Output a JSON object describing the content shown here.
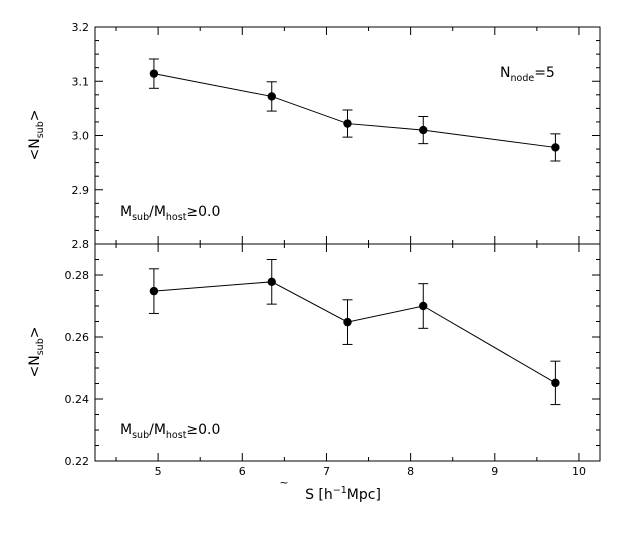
{
  "chart_data": [
    {
      "type": "line",
      "panel": "top",
      "ylabel": "<N",
      "ylabel_sub": "sub",
      "ylabel_close": ">",
      "ylim": [
        2.8,
        3.2
      ],
      "yticks": [
        2.8,
        2.9,
        3.0,
        3.1,
        3.2
      ],
      "ytick_labels": [
        "2.8",
        "2.9",
        "3.0",
        "3.1",
        "3.2"
      ],
      "x": [
        4.95,
        6.35,
        7.25,
        8.15,
        9.72
      ],
      "values": [
        3.114,
        3.072,
        3.022,
        3.01,
        2.978
      ],
      "errors": [
        0.027,
        0.027,
        0.025,
        0.025,
        0.025
      ],
      "annotation_mass": {
        "m1": "M",
        "s1": "sub",
        "slash": "/M",
        "s2": "host",
        "rest": "≥0.0"
      },
      "annotation_node": {
        "main": "N",
        "sub": "node",
        "rest": "=5"
      }
    },
    {
      "type": "line",
      "panel": "bottom",
      "ylabel": "<N",
      "ylabel_sub": "sub",
      "ylabel_close": ">",
      "ylim": [
        0.22,
        0.29
      ],
      "yticks": [
        0.22,
        0.24,
        0.26,
        0.28
      ],
      "ytick_labels": [
        "0.22",
        "0.24",
        "0.26",
        "0.28"
      ],
      "x": [
        4.95,
        6.35,
        7.25,
        8.15,
        9.72
      ],
      "values": [
        0.2748,
        0.2778,
        0.2648,
        0.27,
        0.2452
      ],
      "errors": [
        0.0072,
        0.0072,
        0.0072,
        0.0072,
        0.007
      ],
      "annotation_mass": {
        "m1": "M",
        "s1": "sub",
        "slash": "/M",
        "s2": "host",
        "rest": "≥0.0"
      }
    }
  ],
  "xaxis": {
    "xlim": [
      4.25,
      10.25
    ],
    "xticks": [
      5,
      6,
      7,
      8,
      9,
      10
    ],
    "xtick_labels": [
      "5",
      "6",
      "7",
      "8",
      "9",
      "10"
    ],
    "label_symbol": "S",
    "label_tilde": "~",
    "label_rest": " [h",
    "label_sup": "−1",
    "label_end": "Mpc]"
  }
}
